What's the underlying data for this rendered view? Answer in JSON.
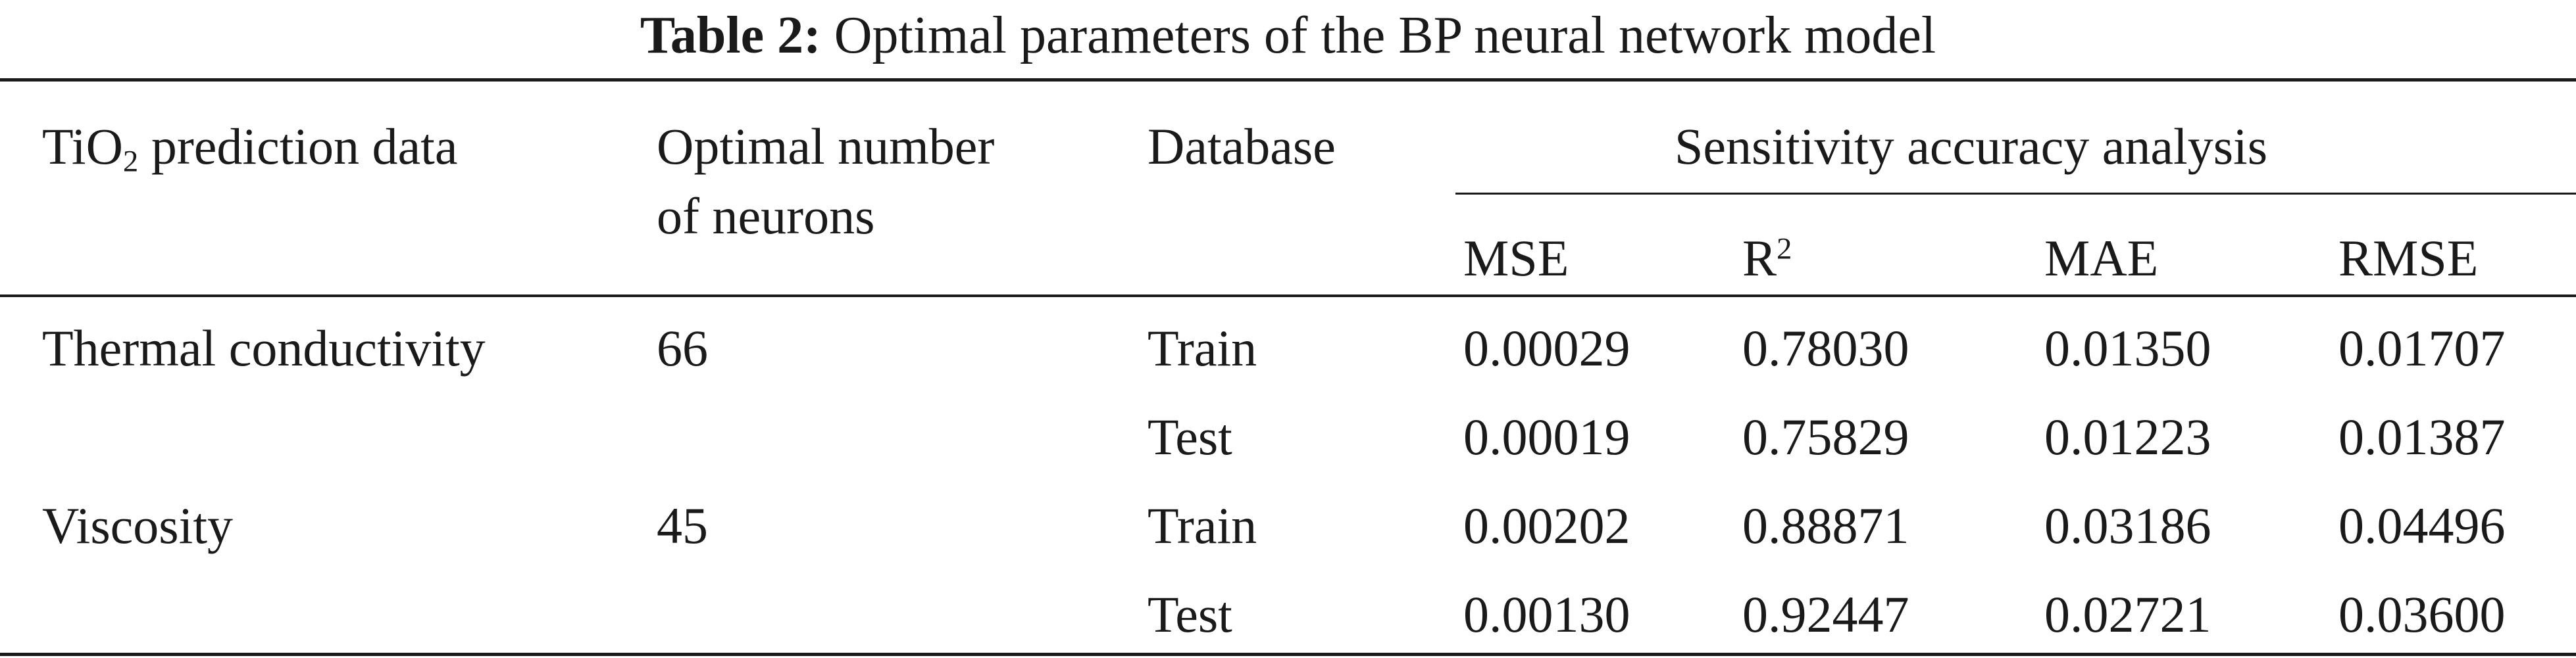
{
  "caption": {
    "label": "Table 2:",
    "text": "Optimal parameters of the BP neural network model"
  },
  "header": {
    "col1_prefix": "TiO",
    "col1_sub": "2",
    "col1_suffix": " prediction data",
    "col2_line1": "Optimal number",
    "col2_line2": "of neurons",
    "col3": "Database",
    "group": "Sensitivity accuracy analysis",
    "mse": "MSE",
    "r2_base": "R",
    "r2_sup": "2",
    "mae": "MAE",
    "rmse": "RMSE"
  },
  "rows": [
    {
      "prediction": "Thermal conductivity",
      "neurons": "66",
      "database": "Train",
      "mse": "0.00029",
      "r2": "0.78030",
      "mae": "0.01350",
      "rmse": "0.01707"
    },
    {
      "prediction": "",
      "neurons": "",
      "database": "Test",
      "mse": "0.00019",
      "r2": "0.75829",
      "mae": "0.01223",
      "rmse": "0.01387"
    },
    {
      "prediction": "Viscosity",
      "neurons": "45",
      "database": "Train",
      "mse": "0.00202",
      "r2": "0.88871",
      "mae": "0.03186",
      "rmse": "0.04496"
    },
    {
      "prediction": "",
      "neurons": "",
      "database": "Test",
      "mse": "0.00130",
      "r2": "0.92447",
      "mae": "0.02721",
      "rmse": "0.03600"
    }
  ]
}
